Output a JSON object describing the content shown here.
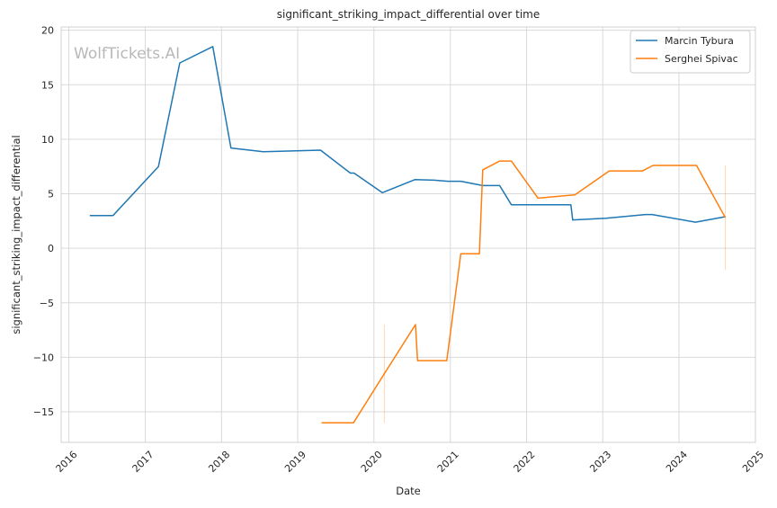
{
  "chart_data": {
    "type": "line",
    "title": "significant_striking_impact_differential over time",
    "xlabel": "Date",
    "ylabel": "significant_striking_impact_differential",
    "watermark": "WolfTickets.AI",
    "xlim": [
      "2015-11-25",
      "2025-01-01"
    ],
    "ylim": [
      -17.8,
      20.3
    ],
    "x_ticks": [
      "2016-01-01",
      "2017-01-01",
      "2018-01-01",
      "2019-01-01",
      "2020-01-01",
      "2021-01-01",
      "2022-01-01",
      "2023-01-01",
      "2024-01-01",
      "2025-01-01"
    ],
    "x_tick_labels": [
      "2016",
      "2017",
      "2018",
      "2019",
      "2020",
      "2021",
      "2022",
      "2023",
      "2024",
      "2025"
    ],
    "y_ticks": [
      20,
      15,
      10,
      5,
      0,
      -5,
      -10,
      -15
    ],
    "y_tick_labels": [
      "20",
      "15",
      "10",
      "5",
      "0",
      "−5",
      "−10",
      "−15"
    ],
    "grid": true,
    "legend_position": "top-right",
    "series": [
      {
        "name": "Marcin Tybura",
        "color": "#1f77b4",
        "points": [
          [
            "2016-04-10",
            3.0
          ],
          [
            "2016-07-30",
            3.0
          ],
          [
            "2017-03-05",
            7.5
          ],
          [
            "2017-06-15",
            17.0
          ],
          [
            "2017-11-20",
            18.5
          ],
          [
            "2018-02-15",
            9.2
          ],
          [
            "2018-07-20",
            8.85
          ],
          [
            "2019-04-20",
            9.0
          ],
          [
            "2019-09-10",
            6.9
          ],
          [
            "2019-09-28",
            6.9
          ],
          [
            "2020-02-10",
            5.1
          ],
          [
            "2020-07-15",
            6.3
          ],
          [
            "2020-10-15",
            6.25
          ],
          [
            "2020-12-20",
            6.15
          ],
          [
            "2021-02-20",
            6.15
          ],
          [
            "2021-06-05",
            5.75
          ],
          [
            "2021-08-25",
            5.75
          ],
          [
            "2021-10-20",
            4.0
          ],
          [
            "2022-08-01",
            4.0
          ],
          [
            "2022-08-10",
            2.6
          ],
          [
            "2023-01-15",
            2.75
          ],
          [
            "2023-07-25",
            3.1
          ],
          [
            "2023-08-25",
            3.1
          ],
          [
            "2024-03-20",
            2.4
          ],
          [
            "2024-08-10",
            2.9
          ]
        ]
      },
      {
        "name": "Serghei Spivac",
        "color": "#ff7f0e",
        "points": [
          [
            "2019-04-25",
            -16.0
          ],
          [
            "2019-09-25",
            -16.0
          ],
          [
            "2020-02-20",
            -11.5
          ],
          [
            "2020-07-18",
            -7.0
          ],
          [
            "2020-07-28",
            -10.3
          ],
          [
            "2020-12-15",
            -10.3
          ],
          [
            "2021-02-20",
            -0.5
          ],
          [
            "2021-05-20",
            -0.5
          ],
          [
            "2021-06-05",
            7.2
          ],
          [
            "2021-08-25",
            8.0
          ],
          [
            "2021-10-20",
            8.0
          ],
          [
            "2022-02-25",
            4.6
          ],
          [
            "2022-08-20",
            4.9
          ],
          [
            "2023-02-01",
            7.1
          ],
          [
            "2023-07-10",
            7.1
          ],
          [
            "2023-08-30",
            7.6
          ],
          [
            "2024-03-25",
            7.6
          ],
          [
            "2024-08-10",
            2.8
          ]
        ]
      }
    ],
    "error_bars": [
      {
        "series": "Serghei Spivac",
        "x": "2020-02-20",
        "low": -16.0,
        "high": -7.0
      },
      {
        "series": "Serghei Spivac",
        "x": "2024-08-10",
        "low": -2.0,
        "high": 7.6
      }
    ]
  }
}
